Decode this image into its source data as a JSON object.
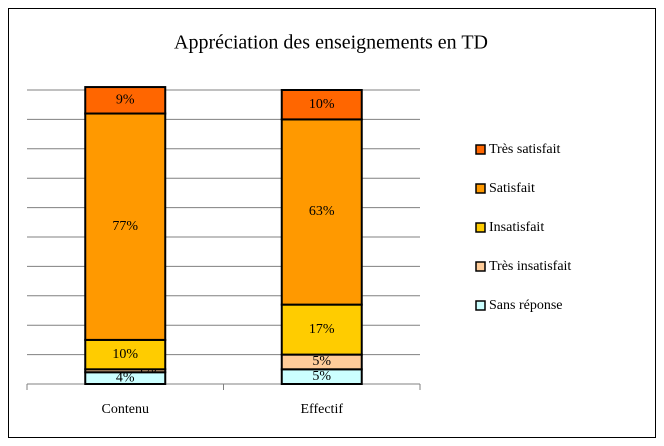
{
  "chart_data": {
    "type": "stacked_bar",
    "title": "Appréciation des enseignements en TD",
    "categories": [
      "Contenu",
      "Effectif"
    ],
    "series": [
      {
        "name": "Sans réponse",
        "color": "#ccffff",
        "values": [
          4,
          5
        ],
        "value_labels": [
          "4%",
          "5%"
        ]
      },
      {
        "name": "Très insatisfait",
        "color": "#ffcc99",
        "values": [
          1,
          5
        ],
        "value_labels": [
          "1%",
          "5%"
        ]
      },
      {
        "name": "Insatisfait",
        "color": "#ffcc00",
        "values": [
          10,
          17
        ],
        "value_labels": [
          "10%",
          "17%"
        ]
      },
      {
        "name": "Satisfait",
        "color": "#ff9900",
        "values": [
          77,
          63
        ],
        "value_labels": [
          "77%",
          "63%"
        ]
      },
      {
        "name": "Très satisfait",
        "color": "#ff6600",
        "values": [
          9,
          10
        ],
        "value_labels": [
          "9%",
          "10%"
        ]
      }
    ],
    "ylim": [
      0,
      100
    ],
    "yticks": [
      0,
      10,
      20,
      30,
      40,
      50,
      60,
      70,
      80,
      90,
      100
    ],
    "grid": true,
    "legend": "right"
  }
}
